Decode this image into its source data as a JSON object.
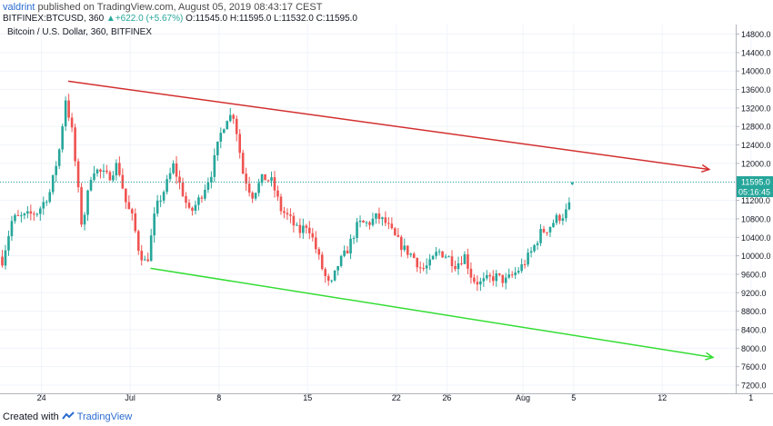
{
  "header": {
    "author": "valdrint",
    "published_text": "published on TradingView.com, August 05, 2019 08:43:17 CEST"
  },
  "quote": {
    "symbol": "BITFINEX:BTCUSD, 360",
    "change": "+622.0 (+5.67%)",
    "open": "O:11545.0",
    "high": "H:11595.0",
    "low": "L:11532.0",
    "close": "C:11595.0"
  },
  "footer": {
    "created_with": "Created with",
    "brand": "TradingView"
  },
  "colors": {
    "up": "#26a69a",
    "down": "#ef5350",
    "resistance": "#d32f2f",
    "support": "#33dd33",
    "price_line": "#26a69a"
  },
  "chart_data": {
    "type": "candlestick",
    "title": "Bitcoin / U.S. Dollar, 360, BITFINEX",
    "price_scale": {
      "min": 7200,
      "max": 14800,
      "step": 400,
      "ticks": [
        "7200.0",
        "7600.0",
        "8000.0",
        "8400.0",
        "8800.0",
        "9200.0",
        "9600.0",
        "10000.0",
        "10400.0",
        "10800.0",
        "11200.0",
        "11600.0",
        "12000.0",
        "12400.0",
        "12800.0",
        "13200.0",
        "13600.0",
        "14000.0",
        "14400.0",
        "14800.0"
      ]
    },
    "time_scale": {
      "ticks": [
        {
          "label": "24",
          "day": 24
        },
        {
          "label": "Jul",
          "day": 31
        },
        {
          "label": "8",
          "day": 38
        },
        {
          "label": "15",
          "day": 45
        },
        {
          "label": "22",
          "day": 52
        },
        {
          "label": "26",
          "day": 56
        },
        {
          "label": "Aug",
          "day": 62
        },
        {
          "label": "5",
          "day": 66
        },
        {
          "label": "12",
          "day": 73
        },
        {
          "label": "1",
          "day": 80
        }
      ]
    },
    "last_price": {
      "value": 11595.0,
      "label": "11595.0",
      "countdown": "05:16:45"
    },
    "trend_lines": [
      {
        "name": "resistance",
        "from": {
          "day": 26.1,
          "price": 13780
        },
        "to": {
          "day": 76.7,
          "price": 11870
        }
      },
      {
        "name": "support",
        "from": {
          "day": 32.6,
          "price": 9730
        },
        "to": {
          "day": 77.0,
          "price": 7800
        }
      }
    ],
    "anchors": [
      {
        "day": 20.9,
        "close": 9900
      },
      {
        "day": 21.7,
        "close": 10800
      },
      {
        "day": 22.7,
        "close": 10850
      },
      {
        "day": 23.7,
        "close": 10950
      },
      {
        "day": 24.7,
        "close": 11400
      },
      {
        "day": 25.4,
        "close": 12300
      },
      {
        "day": 25.9,
        "close": 13400
      },
      {
        "day": 26.4,
        "close": 12700
      },
      {
        "day": 27.2,
        "close": 10600
      },
      {
        "day": 28.0,
        "close": 11900
      },
      {
        "day": 29.3,
        "close": 11700
      },
      {
        "day": 30.0,
        "close": 12000
      },
      {
        "day": 30.7,
        "close": 11100
      },
      {
        "day": 31.2,
        "close": 10800
      },
      {
        "day": 31.7,
        "close": 10100
      },
      {
        "day": 32.3,
        "close": 9800
      },
      {
        "day": 33.0,
        "close": 11000
      },
      {
        "day": 33.8,
        "close": 11500
      },
      {
        "day": 34.4,
        "close": 11950
      },
      {
        "day": 35.1,
        "close": 11400
      },
      {
        "day": 35.7,
        "close": 10900
      },
      {
        "day": 36.5,
        "close": 11250
      },
      {
        "day": 37.4,
        "close": 11800
      },
      {
        "day": 38.1,
        "close": 12600
      },
      {
        "day": 38.6,
        "close": 13000
      },
      {
        "day": 39.2,
        "close": 13050
      },
      {
        "day": 39.9,
        "close": 11800
      },
      {
        "day": 40.6,
        "close": 11300
      },
      {
        "day": 41.5,
        "close": 11700
      },
      {
        "day": 42.2,
        "close": 11600
      },
      {
        "day": 42.9,
        "close": 11000
      },
      {
        "day": 43.6,
        "close": 10800
      },
      {
        "day": 44.3,
        "close": 10500
      },
      {
        "day": 45.0,
        "close": 10700
      },
      {
        "day": 45.6,
        "close": 10200
      },
      {
        "day": 46.3,
        "close": 9600
      },
      {
        "day": 46.8,
        "close": 9300
      },
      {
        "day": 47.4,
        "close": 9800
      },
      {
        "day": 48.1,
        "close": 10100
      },
      {
        "day": 49.0,
        "close": 10700
      },
      {
        "day": 49.8,
        "close": 10700
      },
      {
        "day": 50.5,
        "close": 10850
      },
      {
        "day": 51.2,
        "close": 10700
      },
      {
        "day": 51.9,
        "close": 10400
      },
      {
        "day": 52.6,
        "close": 10150
      },
      {
        "day": 53.3,
        "close": 10000
      },
      {
        "day": 54.0,
        "close": 9700
      },
      {
        "day": 54.6,
        "close": 9800
      },
      {
        "day": 55.3,
        "close": 10100
      },
      {
        "day": 56.0,
        "close": 10000
      },
      {
        "day": 56.7,
        "close": 9800
      },
      {
        "day": 57.4,
        "close": 10000
      },
      {
        "day": 58.0,
        "close": 9500
      },
      {
        "day": 58.6,
        "close": 9400
      },
      {
        "day": 59.3,
        "close": 9500
      },
      {
        "day": 59.9,
        "close": 9550
      },
      {
        "day": 60.6,
        "close": 9450
      },
      {
        "day": 61.3,
        "close": 9600
      },
      {
        "day": 62.0,
        "close": 9800
      },
      {
        "day": 62.7,
        "close": 10100
      },
      {
        "day": 63.4,
        "close": 10500
      },
      {
        "day": 64.0,
        "close": 10600
      },
      {
        "day": 64.6,
        "close": 10800
      },
      {
        "day": 65.3,
        "close": 10900
      },
      {
        "day": 65.7,
        "close": 11100
      },
      {
        "day": 66.0,
        "close": 11595
      }
    ]
  }
}
